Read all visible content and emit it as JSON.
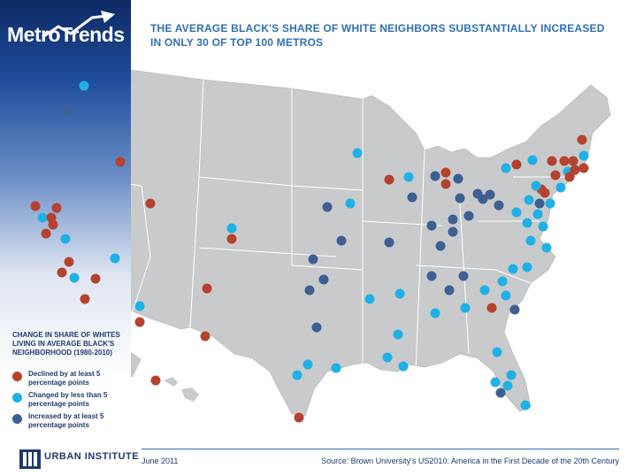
{
  "brand": {
    "name": "MetroTrends"
  },
  "headline": "THE AVERAGE BLACK'S SHARE OF WHITE NEIGHBORS SUBSTANTIALLY INCREASED IN ONLY 30 OF TOP 100 METROS",
  "legend": {
    "title": "CHANGE IN SHARE OF WHITES LIVING IN AVERAGE BLACK'S NEIGHBORHOOD (1980-2010)",
    "items": [
      {
        "label": "Declined by at least 5 percentage points",
        "color": "#b5422f"
      },
      {
        "label": "Changed by less than 5 percentage points",
        "color": "#1fb1e6"
      },
      {
        "label": "Increased by at least 5 percentage points",
        "color": "#3d5f93"
      }
    ]
  },
  "footer": {
    "org": "URBAN INSTITUTE",
    "date": "June 2011",
    "source": "Source: Brown University's US2010: America in the First Decade of the 20th Century"
  },
  "colors": {
    "map_fill": "#c9cacb",
    "border": "#ffffff",
    "sidebar_top": "#0d2a63"
  }
}
